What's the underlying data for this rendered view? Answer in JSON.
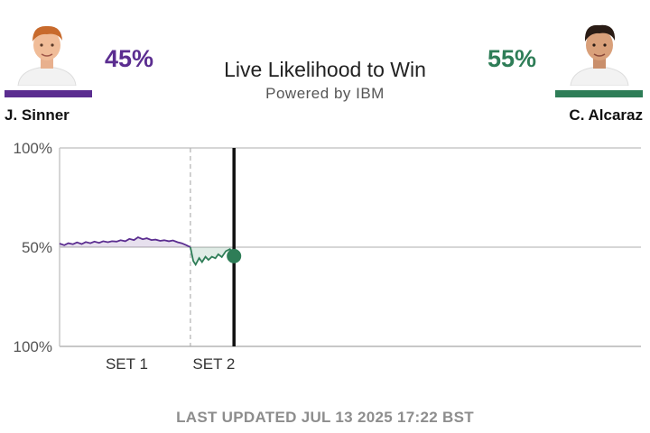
{
  "header": {
    "title": "Live Likelihood to Win",
    "subtitle": "Powered by IBM"
  },
  "players": {
    "left": {
      "name": "J. Sinner",
      "percent": "45%",
      "color": "#5b2d90"
    },
    "right": {
      "name": "C. Alcaraz",
      "percent": "55%",
      "color": "#2e7d57"
    }
  },
  "footer": {
    "text": "LAST UPDATED JUL 13 2025 17:22 BST"
  },
  "chart_data": {
    "type": "line",
    "ylabels": [
      "100%",
      "50%",
      "100%"
    ],
    "sets": [
      "SET 1",
      "SET 2"
    ],
    "baseline": 50,
    "x_range": [
      0,
      100
    ],
    "y_range": [
      -50,
      50
    ],
    "current_x": 30,
    "set_boundary_x": 22.5,
    "series": [
      {
        "points": [
          [
            0,
            1.8
          ],
          [
            0.8,
            1.0
          ],
          [
            1.5,
            2.0
          ],
          [
            2.3,
            1.5
          ],
          [
            3.0,
            2.4
          ],
          [
            3.8,
            1.6
          ],
          [
            4.5,
            2.6
          ],
          [
            5.3,
            2.0
          ],
          [
            6.0,
            2.8
          ],
          [
            6.8,
            2.2
          ],
          [
            7.5,
            3.0
          ],
          [
            8.3,
            2.5
          ],
          [
            9.0,
            3.0
          ],
          [
            9.8,
            2.8
          ],
          [
            10.5,
            3.5
          ],
          [
            11.3,
            3.0
          ],
          [
            12.0,
            4.2
          ],
          [
            12.8,
            3.6
          ],
          [
            13.5,
            5.0
          ],
          [
            14.3,
            4.0
          ],
          [
            15.0,
            4.5
          ],
          [
            15.8,
            3.6
          ],
          [
            16.5,
            3.8
          ],
          [
            17.3,
            3.2
          ],
          [
            18.0,
            3.5
          ],
          [
            18.8,
            3.0
          ],
          [
            19.5,
            3.4
          ],
          [
            20.3,
            2.5
          ],
          [
            21.0,
            2.0
          ],
          [
            21.8,
            1.0
          ],
          [
            22.5,
            0
          ],
          [
            23.0,
            -7.0
          ],
          [
            23.4,
            -8.8
          ],
          [
            24.0,
            -5.5
          ],
          [
            24.5,
            -7.5
          ],
          [
            25.1,
            -4.8
          ],
          [
            25.6,
            -6.4
          ],
          [
            26.2,
            -4.8
          ],
          [
            26.8,
            -5.6
          ],
          [
            27.3,
            -3.6
          ],
          [
            27.9,
            -5.0
          ],
          [
            28.6,
            -2.0
          ],
          [
            29.3,
            -1.0
          ],
          [
            30.0,
            -4.5
          ]
        ]
      }
    ]
  }
}
